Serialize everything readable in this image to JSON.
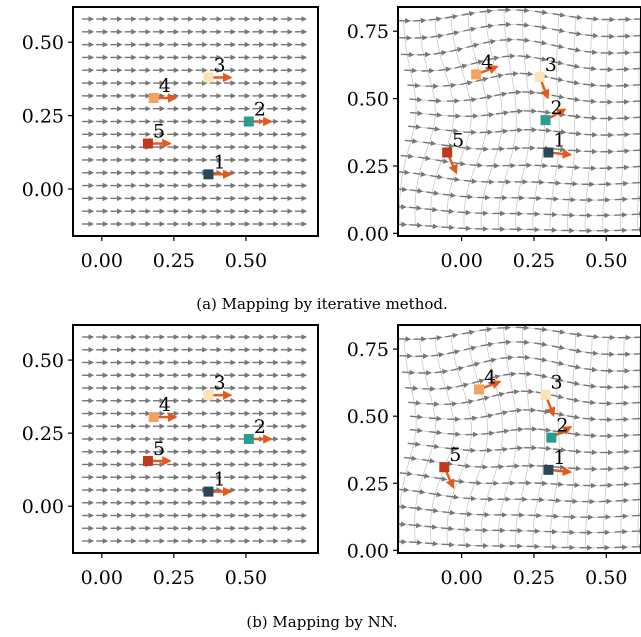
{
  "figure": {
    "captions": [
      "(a) Mapping by iterative method.",
      "(b) Mapping by NN."
    ]
  },
  "palette": {
    "1": "#2a4858",
    "2": "#2a9d8f",
    "3": "#fde2b5",
    "4": "#f4a261",
    "5": "#c0391b",
    "arrow": "#e35a1e",
    "field": "#777777",
    "grid": "#c8c8c8"
  },
  "chart_data": [
    {
      "type": "scatter",
      "panel": "a-left",
      "title": "",
      "xlabel": "",
      "ylabel": "",
      "xlim": [
        -0.1,
        0.75
      ],
      "ylim": [
        -0.16,
        0.62
      ],
      "xticks": [
        "0.00",
        "0.25",
        "0.50"
      ],
      "xtick_values": [
        0.0,
        0.25,
        0.5
      ],
      "yticks": [
        "0.00",
        "0.25",
        "0.50"
      ],
      "ytick_values": [
        0.0,
        0.25,
        0.5
      ],
      "field": "uniform",
      "points": [
        {
          "label": "1",
          "x": 0.37,
          "y": 0.05
        },
        {
          "label": "2",
          "x": 0.51,
          "y": 0.23
        },
        {
          "label": "3",
          "x": 0.37,
          "y": 0.38
        },
        {
          "label": "4",
          "x": 0.18,
          "y": 0.31
        },
        {
          "label": "5",
          "x": 0.16,
          "y": 0.155
        }
      ]
    },
    {
      "type": "scatter",
      "panel": "a-right",
      "title": "",
      "xlabel": "",
      "ylabel": "",
      "xlim": [
        -0.22,
        0.62
      ],
      "ylim": [
        -0.01,
        0.84
      ],
      "xticks": [
        "0.00",
        "0.25",
        "0.50"
      ],
      "xtick_values": [
        0.0,
        0.25,
        0.5
      ],
      "yticks": [
        "0.00",
        "0.25",
        "0.50",
        "0.75"
      ],
      "ytick_values": [
        0.0,
        0.25,
        0.5,
        0.75
      ],
      "field": "warped",
      "points": [
        {
          "label": "1",
          "x": 0.3,
          "y": 0.3
        },
        {
          "label": "2",
          "x": 0.29,
          "y": 0.42
        },
        {
          "label": "3",
          "x": 0.27,
          "y": 0.58
        },
        {
          "label": "4",
          "x": 0.05,
          "y": 0.59
        },
        {
          "label": "5",
          "x": -0.05,
          "y": 0.3
        }
      ]
    },
    {
      "type": "scatter",
      "panel": "b-left",
      "title": "",
      "xlabel": "",
      "ylabel": "",
      "xlim": [
        -0.1,
        0.75
      ],
      "ylim": [
        -0.16,
        0.62
      ],
      "xticks": [
        "0.00",
        "0.25",
        "0.50"
      ],
      "xtick_values": [
        0.0,
        0.25,
        0.5
      ],
      "yticks": [
        "0.00",
        "0.25",
        "0.50"
      ],
      "ytick_values": [
        0.0,
        0.25,
        0.5
      ],
      "field": "uniform",
      "points": [
        {
          "label": "1",
          "x": 0.37,
          "y": 0.05
        },
        {
          "label": "2",
          "x": 0.51,
          "y": 0.23
        },
        {
          "label": "3",
          "x": 0.37,
          "y": 0.38
        },
        {
          "label": "4",
          "x": 0.18,
          "y": 0.305
        },
        {
          "label": "5",
          "x": 0.16,
          "y": 0.155
        }
      ]
    },
    {
      "type": "scatter",
      "panel": "b-right",
      "title": "",
      "xlabel": "",
      "ylabel": "",
      "xlim": [
        -0.22,
        0.62
      ],
      "ylim": [
        -0.01,
        0.84
      ],
      "xticks": [
        "0.00",
        "0.25",
        "0.50"
      ],
      "xtick_values": [
        0.0,
        0.25,
        0.5
      ],
      "yticks": [
        "0.00",
        "0.25",
        "0.50",
        "0.75"
      ],
      "ytick_values": [
        0.0,
        0.25,
        0.5,
        0.75
      ],
      "field": "warped",
      "points": [
        {
          "label": "1",
          "x": 0.3,
          "y": 0.3
        },
        {
          "label": "2",
          "x": 0.31,
          "y": 0.42
        },
        {
          "label": "3",
          "x": 0.29,
          "y": 0.58
        },
        {
          "label": "4",
          "x": 0.06,
          "y": 0.6
        },
        {
          "label": "5",
          "x": -0.06,
          "y": 0.31
        }
      ]
    }
  ]
}
